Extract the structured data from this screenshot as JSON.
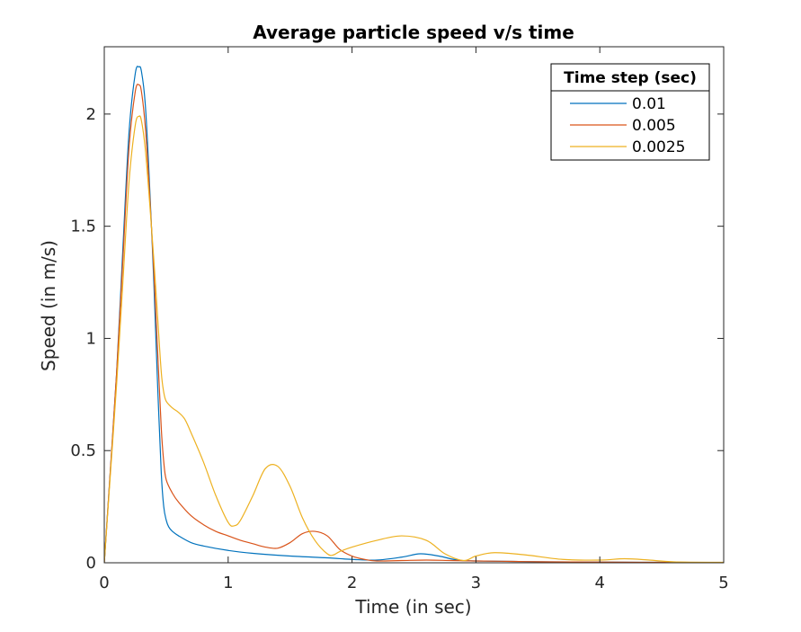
{
  "chart_data": {
    "type": "line",
    "title": "Average particle speed v/s time",
    "xlabel": "Time (in sec)",
    "ylabel": "Speed (in m/s)",
    "xlim": [
      0,
      5
    ],
    "ylim": [
      0,
      2.3
    ],
    "x_ticks": [
      0,
      1,
      2,
      3,
      4,
      5
    ],
    "x_tick_labels": [
      "0",
      "1",
      "2",
      "3",
      "4",
      "5"
    ],
    "y_ticks": [
      0,
      0.5,
      1,
      1.5,
      2
    ],
    "y_tick_labels": [
      "0",
      "0.5",
      "1",
      "1.5",
      "2"
    ],
    "grid": false,
    "legend": {
      "title": "Time step (sec)",
      "placement": "top-right"
    },
    "series": [
      {
        "name": "0.01",
        "color": "#0072BD",
        "x": [
          0,
          0.05,
          0.1,
          0.15,
          0.2,
          0.25,
          0.28,
          0.3,
          0.33,
          0.36,
          0.4,
          0.43,
          0.46,
          0.48,
          0.5,
          0.52,
          0.55,
          0.6,
          0.7,
          0.8,
          1.0,
          1.2,
          1.5,
          1.8,
          2.0,
          2.2,
          2.4,
          2.55,
          2.7,
          2.85,
          3.0,
          3.3,
          3.6,
          4.0,
          4.5,
          5.0
        ],
        "values": [
          0,
          0.42,
          0.85,
          1.4,
          1.92,
          2.18,
          2.21,
          2.19,
          2.05,
          1.75,
          1.25,
          0.8,
          0.4,
          0.25,
          0.19,
          0.16,
          0.14,
          0.12,
          0.09,
          0.075,
          0.055,
          0.042,
          0.03,
          0.022,
          0.015,
          0.012,
          0.025,
          0.04,
          0.03,
          0.012,
          0.008,
          0.006,
          0.004,
          0.003,
          0.002,
          0.001
        ]
      },
      {
        "name": "0.005",
        "color": "#D95319",
        "x": [
          0,
          0.05,
          0.1,
          0.15,
          0.2,
          0.25,
          0.28,
          0.3,
          0.33,
          0.36,
          0.4,
          0.43,
          0.46,
          0.48,
          0.5,
          0.55,
          0.6,
          0.7,
          0.8,
          0.9,
          1.0,
          1.1,
          1.2,
          1.3,
          1.4,
          1.5,
          1.6,
          1.7,
          1.8,
          1.9,
          2.0,
          2.1,
          2.2,
          2.4,
          2.6,
          2.8,
          3.0,
          3.3,
          3.6,
          4.0,
          4.5,
          5.0
        ],
        "values": [
          0,
          0.42,
          0.85,
          1.35,
          1.85,
          2.1,
          2.13,
          2.1,
          1.95,
          1.7,
          1.3,
          0.95,
          0.6,
          0.45,
          0.37,
          0.31,
          0.27,
          0.21,
          0.17,
          0.14,
          0.12,
          0.1,
          0.085,
          0.07,
          0.065,
          0.09,
          0.13,
          0.14,
          0.12,
          0.06,
          0.03,
          0.015,
          0.008,
          0.01,
          0.012,
          0.01,
          0.008,
          0.006,
          0.004,
          0.003,
          0.002,
          0.001
        ]
      },
      {
        "name": "0.0025",
        "color": "#EDB120",
        "x": [
          0,
          0.05,
          0.1,
          0.15,
          0.2,
          0.25,
          0.28,
          0.3,
          0.33,
          0.36,
          0.4,
          0.43,
          0.46,
          0.48,
          0.5,
          0.55,
          0.6,
          0.65,
          0.7,
          0.8,
          0.9,
          1.0,
          1.05,
          1.1,
          1.2,
          1.3,
          1.4,
          1.5,
          1.6,
          1.7,
          1.8,
          1.85,
          1.9,
          2.0,
          2.2,
          2.4,
          2.6,
          2.75,
          2.9,
          3.0,
          3.15,
          3.4,
          3.7,
          4.0,
          4.2,
          4.4,
          4.6,
          5.0
        ],
        "values": [
          0,
          0.4,
          0.8,
          1.25,
          1.7,
          1.95,
          1.99,
          1.97,
          1.85,
          1.65,
          1.35,
          1.1,
          0.85,
          0.76,
          0.72,
          0.69,
          0.67,
          0.64,
          0.58,
          0.45,
          0.3,
          0.18,
          0.165,
          0.19,
          0.3,
          0.42,
          0.43,
          0.34,
          0.2,
          0.1,
          0.04,
          0.035,
          0.05,
          0.07,
          0.1,
          0.12,
          0.1,
          0.04,
          0.01,
          0.03,
          0.045,
          0.035,
          0.015,
          0.012,
          0.018,
          0.012,
          0.004,
          0.002
        ]
      }
    ]
  }
}
